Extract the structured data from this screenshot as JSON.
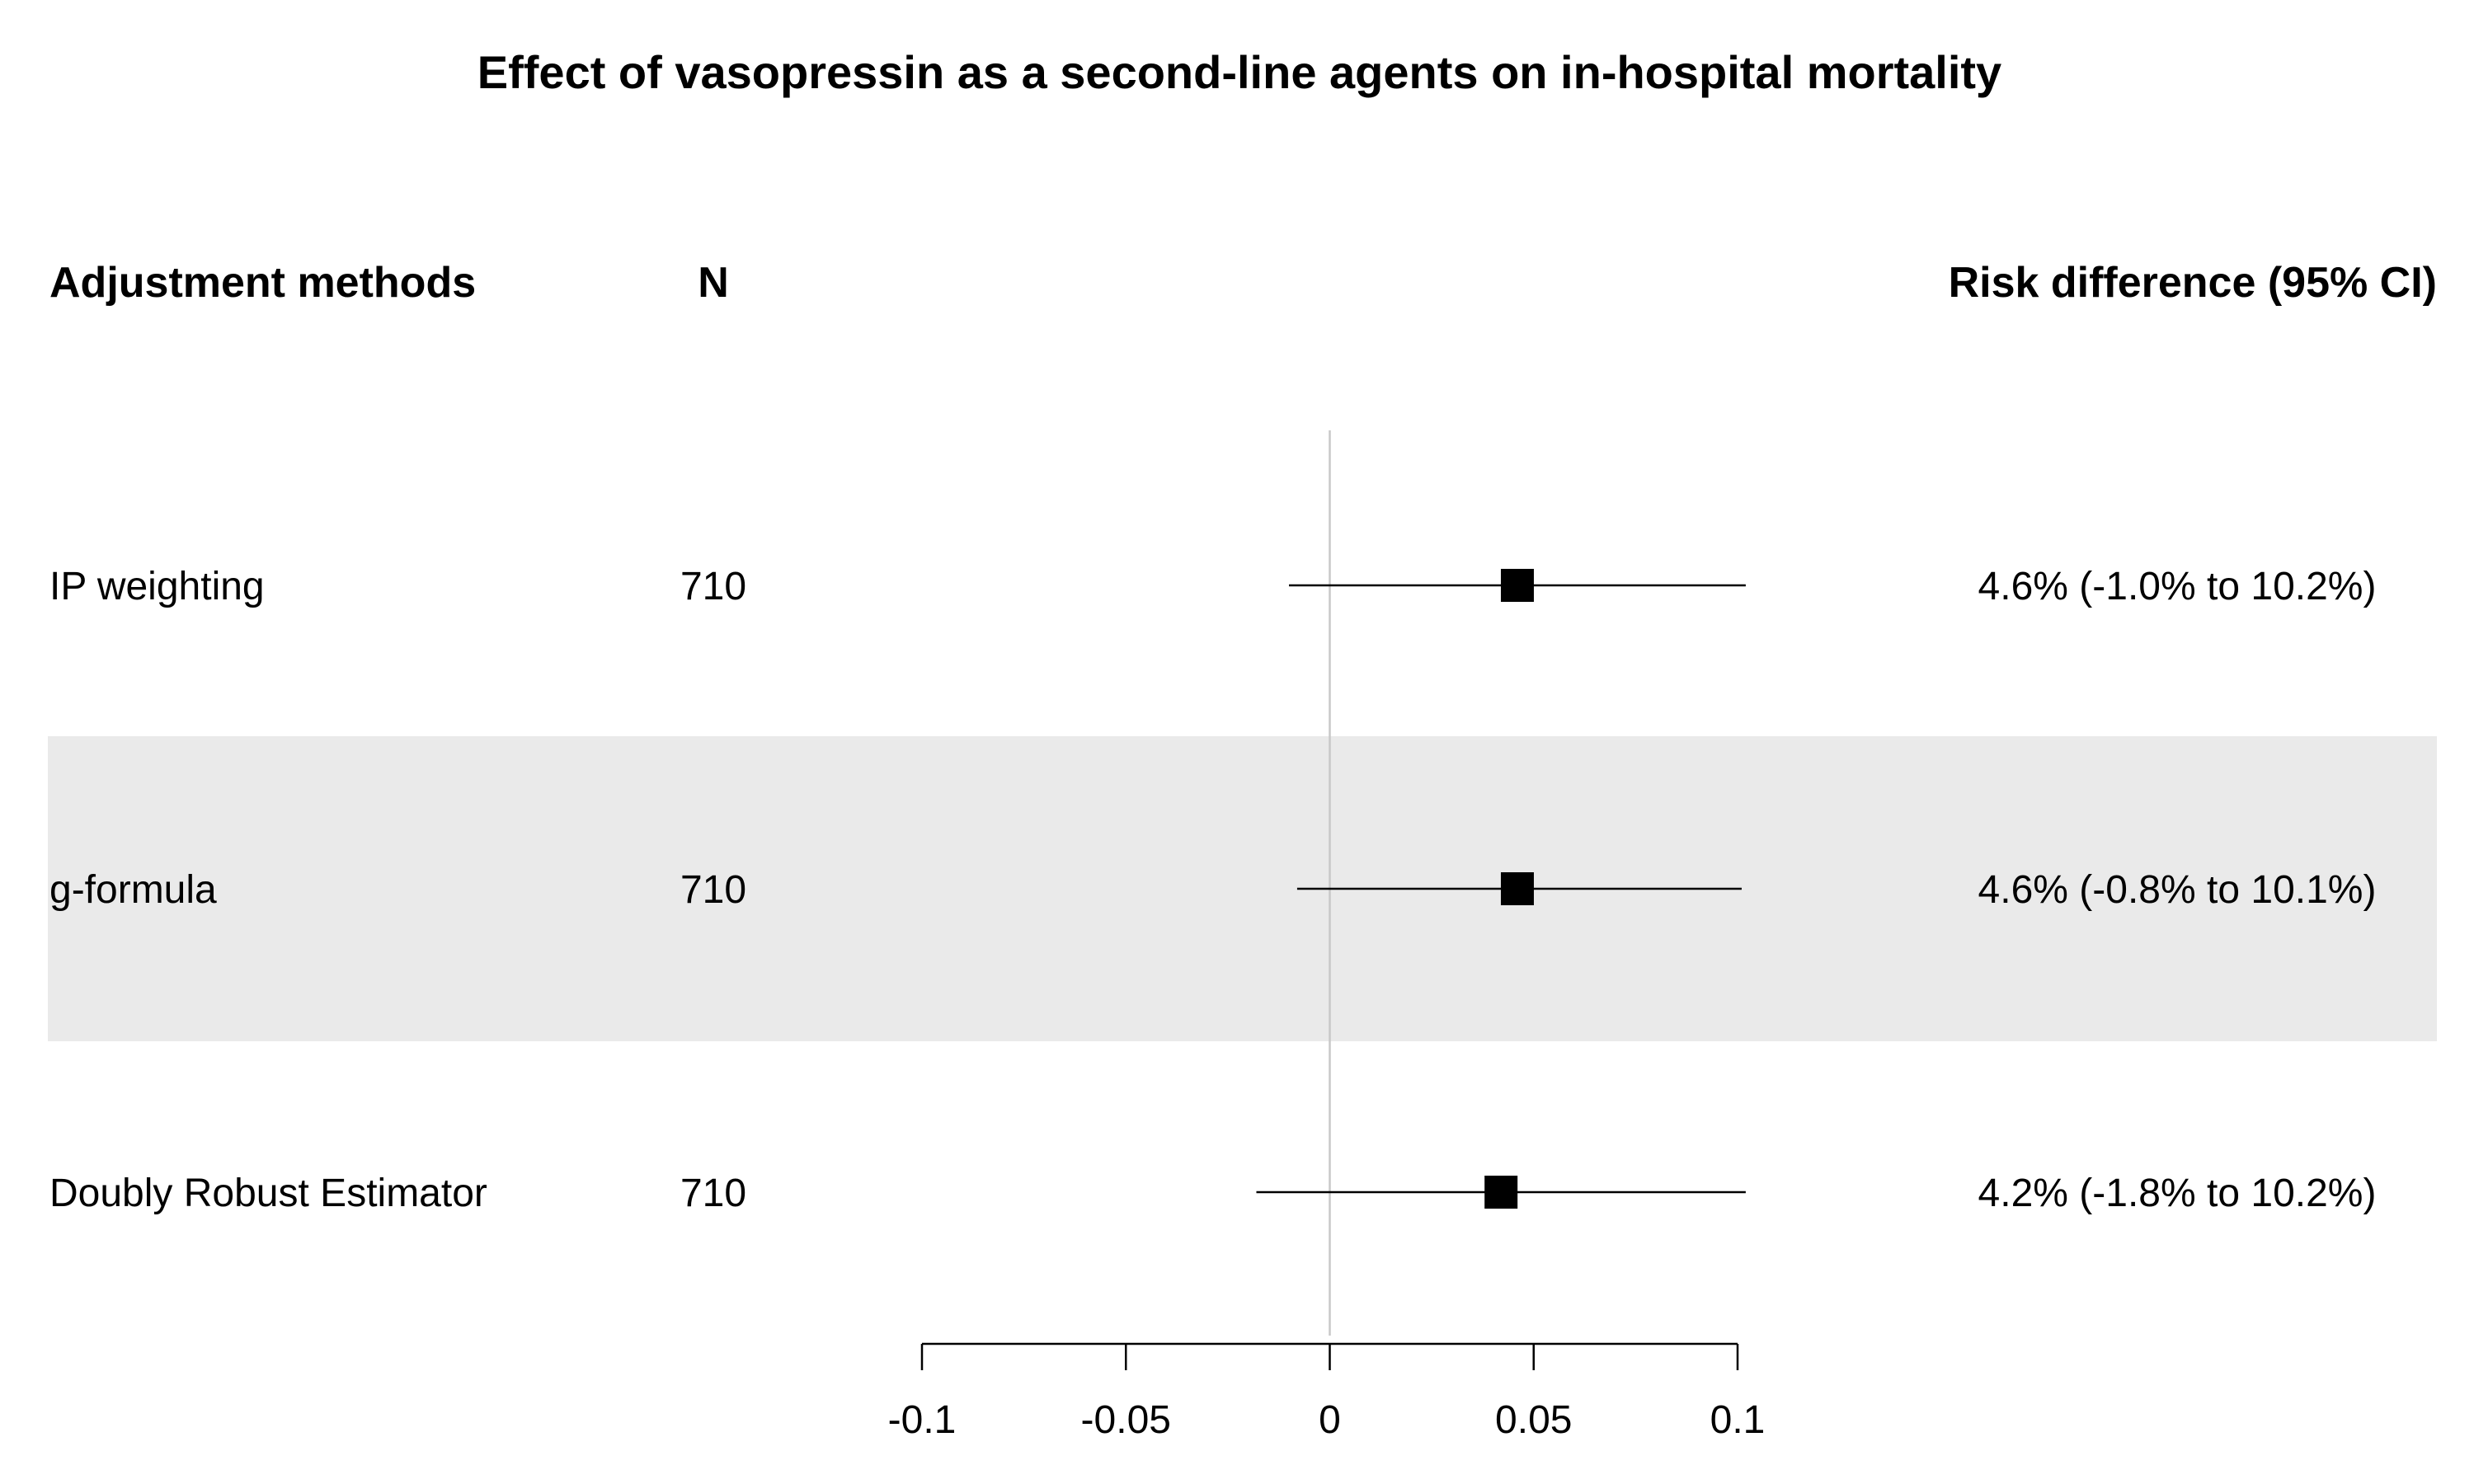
{
  "chart_data": {
    "type": "forest",
    "title": "Effect of vasopressin as a second-line agents on in-hospital mortality",
    "columns": {
      "method": "Adjustment methods",
      "n": "N",
      "effect": "Risk difference (95% CI)"
    },
    "rows": [
      {
        "method": "IP weighting",
        "n": "710",
        "estimate": 0.046,
        "lower": -0.01,
        "upper": 0.102,
        "label": "4.6% (-1.0% to 10.2%)",
        "shaded": false
      },
      {
        "method": "g-formula",
        "n": "710",
        "estimate": 0.046,
        "lower": -0.008,
        "upper": 0.101,
        "label": "4.6% (-0.8% to 10.1%)",
        "shaded": true
      },
      {
        "method": "Doubly Robust Estimator",
        "n": "710",
        "estimate": 0.042,
        "lower": -0.018,
        "upper": 0.102,
        "label": "4.2% (-1.8% to 10.2%)",
        "shaded": false
      }
    ],
    "xlim": [
      -0.1,
      0.1
    ],
    "ticks": [
      -0.1,
      -0.05,
      0,
      0.05,
      0.1
    ],
    "tick_labels": [
      "-0.1",
      "-0.05",
      "0",
      "0.05",
      "0.1"
    ],
    "reference_line": 0,
    "colors": {
      "shade": "#eaeaea",
      "reference": "#c8c8c8",
      "marker": "#000000"
    }
  }
}
